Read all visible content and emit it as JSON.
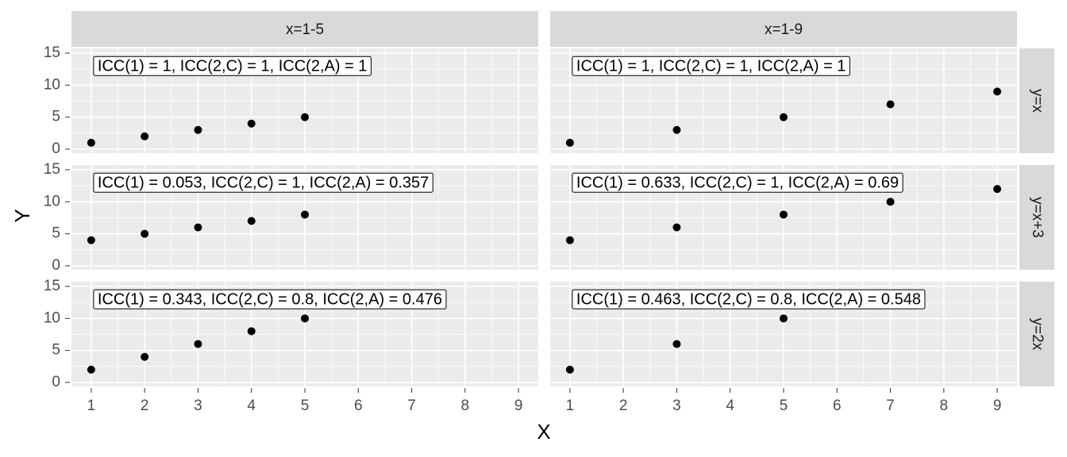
{
  "chart_data": {
    "type": "scatter",
    "xlabel": "X",
    "ylabel": "Y",
    "xlim": [
      0.63,
      9.37
    ],
    "xticks": [
      1,
      2,
      3,
      4,
      5,
      6,
      7,
      8,
      9
    ],
    "ylim": [
      -0.62,
      15.74
    ],
    "yticks": [
      0,
      5,
      10,
      15
    ],
    "grid": true,
    "minor_grid": true,
    "color": "#000000",
    "columns": [
      "x=1-5",
      "x=1-9"
    ],
    "rows": [
      {
        "label": "y=x",
        "panels": [
          {
            "annotation": "ICC(1) = 1, ICC(2,C) = 1, ICC(2,A) = 1",
            "x": [
              1,
              2,
              3,
              4,
              5
            ],
            "y": [
              1,
              2,
              3,
              4,
              5
            ]
          },
          {
            "annotation": "ICC(1) = 1, ICC(2,C) = 1, ICC(2,A) = 1",
            "x": [
              1,
              3,
              5,
              7,
              9
            ],
            "y": [
              1,
              3,
              5,
              7,
              9
            ]
          }
        ]
      },
      {
        "label": "y=x+3",
        "panels": [
          {
            "annotation": "ICC(1) = 0.053, ICC(2,C) = 1, ICC(2,A) = 0.357",
            "x": [
              1,
              2,
              3,
              4,
              5
            ],
            "y": [
              4,
              5,
              6,
              7,
              8
            ]
          },
          {
            "annotation": "ICC(1) = 0.633, ICC(2,C) = 1, ICC(2,A) = 0.69",
            "x": [
              1,
              3,
              5,
              7,
              9
            ],
            "y": [
              4,
              6,
              8,
              10,
              12
            ]
          }
        ]
      },
      {
        "label": "y=2x",
        "panels": [
          {
            "annotation": "ICC(1) = 0.343, ICC(2,C) = 0.8, ICC(2,A) = 0.476",
            "x": [
              1,
              2,
              3,
              4,
              5
            ],
            "y": [
              2,
              4,
              6,
              8,
              10
            ]
          },
          {
            "annotation": "ICC(1) = 0.463, ICC(2,C) = 0.8, ICC(2,A) = 0.548",
            "x": [
              1,
              3,
              5
            ],
            "y": [
              2,
              6,
              10
            ]
          }
        ]
      }
    ]
  }
}
